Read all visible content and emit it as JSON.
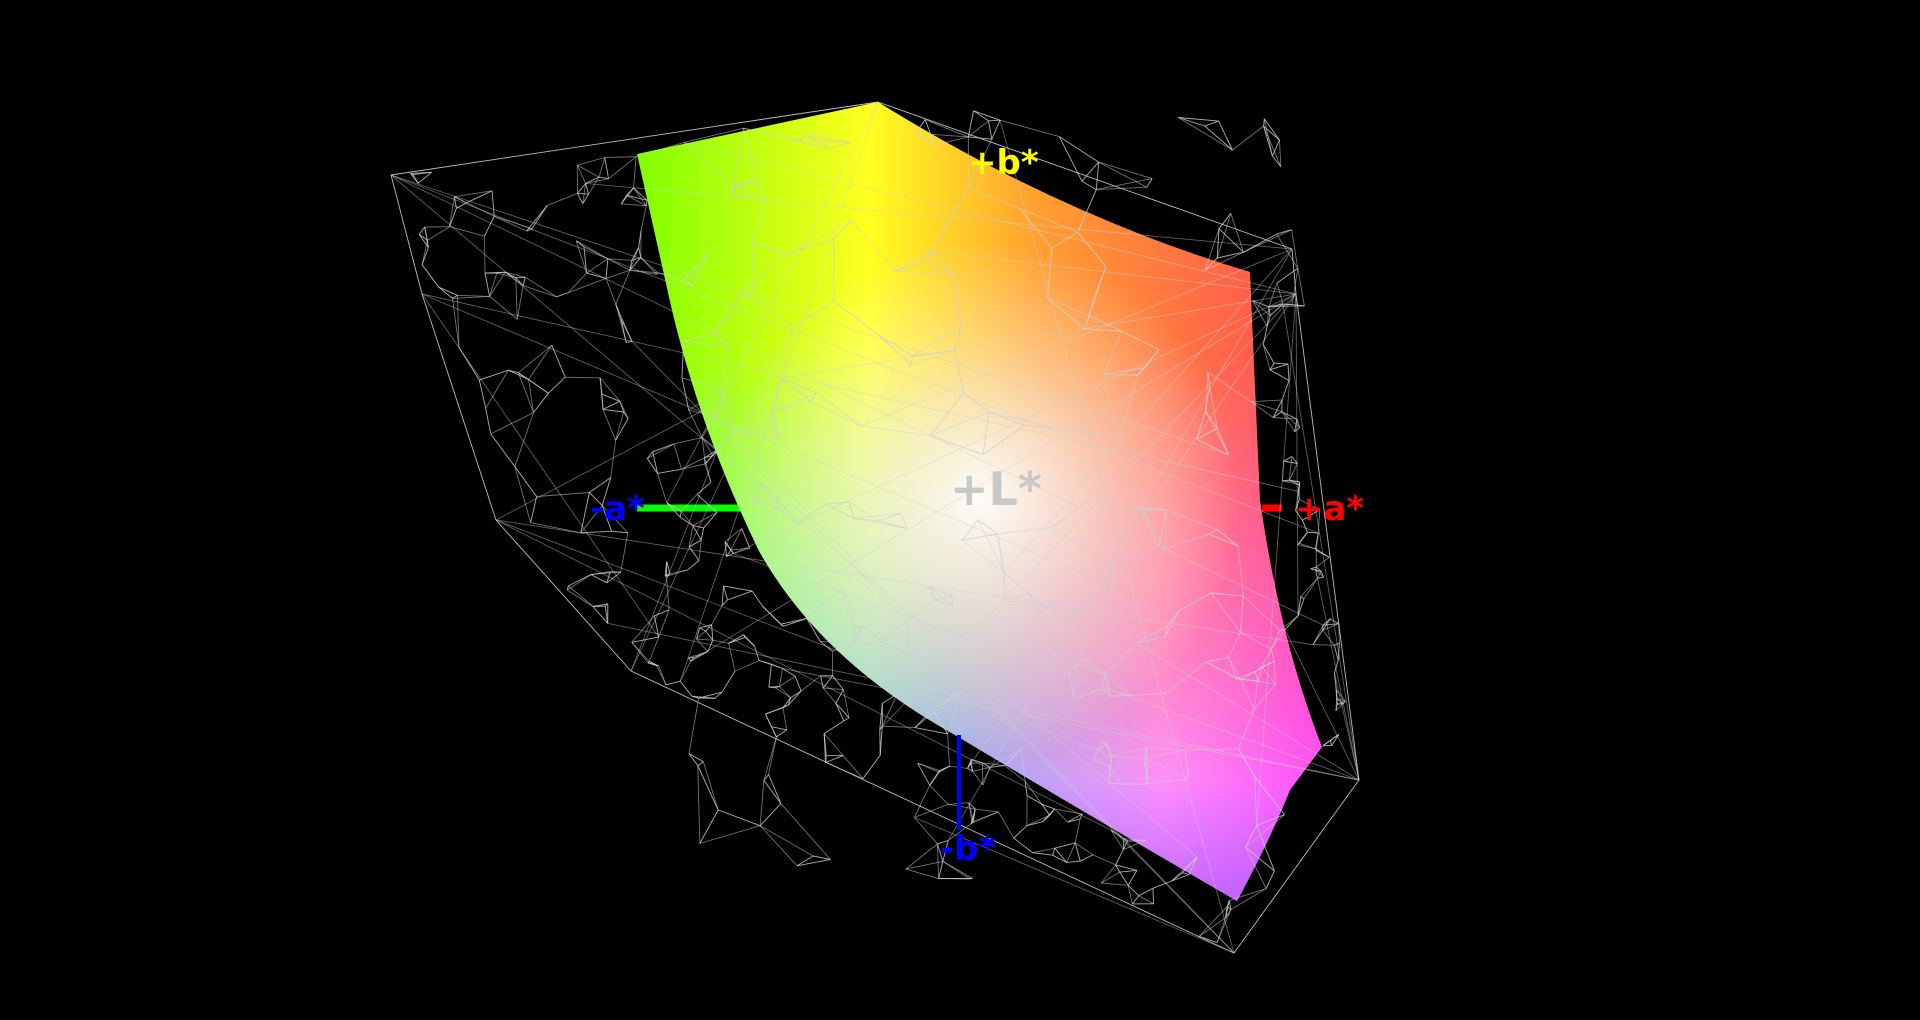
{
  "diagram": {
    "background": "#000000",
    "axes": {
      "plus_b": {
        "label": "+b*",
        "color": "#ffff00"
      },
      "minus_a": {
        "label": "-a*",
        "color": "#0000ff",
        "line_color": "#00ff00"
      },
      "plus_a": {
        "label": "+a*",
        "color": "#ff0000",
        "line_color": "#ff0000"
      },
      "plus_l": {
        "label": "+L*",
        "color": "#c8c8c8"
      },
      "minus_b": {
        "label": "-b*",
        "color": "#0000ff",
        "line_color": "#0000ff"
      }
    },
    "surface_colors": {
      "green": "#80ff00",
      "yellow": "#ffff20",
      "orange": "#ffa030",
      "red": "#ff5050",
      "cyan": "#70fff0",
      "blue": "#90b0ff",
      "magenta": "#ff50ff",
      "violet": "#b060ff"
    },
    "wireframe_color": "#d0d0d0"
  }
}
